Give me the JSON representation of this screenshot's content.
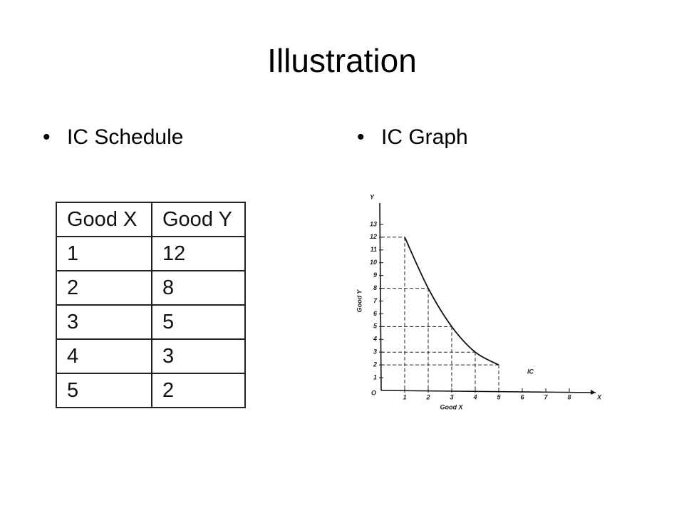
{
  "header": {
    "title": "Illustration"
  },
  "bullets": [
    "IC Schedule",
    "IC Graph"
  ],
  "table": {
    "header": [
      "Good X",
      "Good Y"
    ],
    "rows": [
      [
        1,
        12
      ],
      [
        2,
        8
      ],
      [
        3,
        5
      ],
      [
        4,
        3
      ],
      [
        5,
        2
      ]
    ]
  },
  "chart_data": {
    "type": "line",
    "x_label": "Good X",
    "y_label": "Good Y",
    "x_axis_letter": "X",
    "y_axis_letter": "Y",
    "origin_label": "O",
    "series": [
      {
        "name": "IC",
        "color": "#111111",
        "x": [
          1,
          2,
          3,
          4,
          5
        ],
        "values": [
          12,
          8,
          5,
          3,
          2
        ]
      }
    ],
    "xlim": [
      0,
      9
    ],
    "ylim": [
      0,
      14
    ],
    "xticks": [
      1,
      2,
      3,
      4,
      5,
      6,
      7,
      8
    ],
    "yticks": [
      1,
      2,
      3,
      4,
      5,
      6,
      7,
      8,
      9,
      10,
      11,
      12,
      13
    ]
  }
}
